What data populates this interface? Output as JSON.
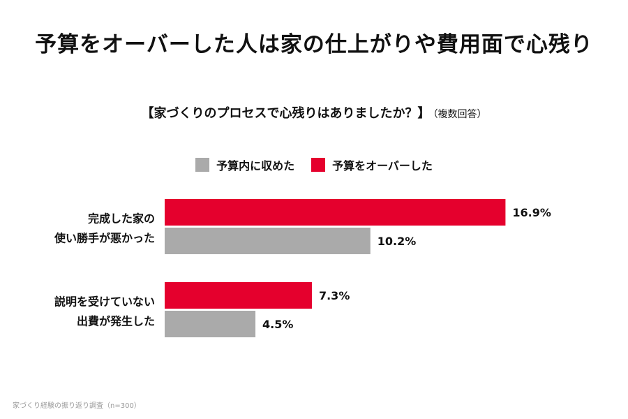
{
  "chart_data": {
    "type": "bar",
    "orientation": "horizontal",
    "title": "予算をオーバーした人は家の仕上がりや費用面で心残り",
    "subtitle": "【家づくりのプロセスで心残りはありましたか？】",
    "subtitle_note": "（複数回答）",
    "categories": [
      [
        "完成した家の",
        "使い勝手が悪かった"
      ],
      [
        "説明を受けていない",
        "出費が発生した"
      ]
    ],
    "series": [
      {
        "name": "予算をオーバーした",
        "color": "#e5002d",
        "values": [
          16.9,
          7.3
        ],
        "labels": [
          "16.9%",
          "7.3%"
        ]
      },
      {
        "name": "予算内に収めた",
        "color": "#aaaaaa",
        "values": [
          10.2,
          4.5
        ],
        "labels": [
          "10.2%",
          "4.5%"
        ]
      }
    ],
    "legend_order": [
      1,
      0
    ],
    "value_unit": "%",
    "xlim": [
      0,
      20
    ],
    "source": "家づくり経験の振り返り調査（n=300）"
  }
}
